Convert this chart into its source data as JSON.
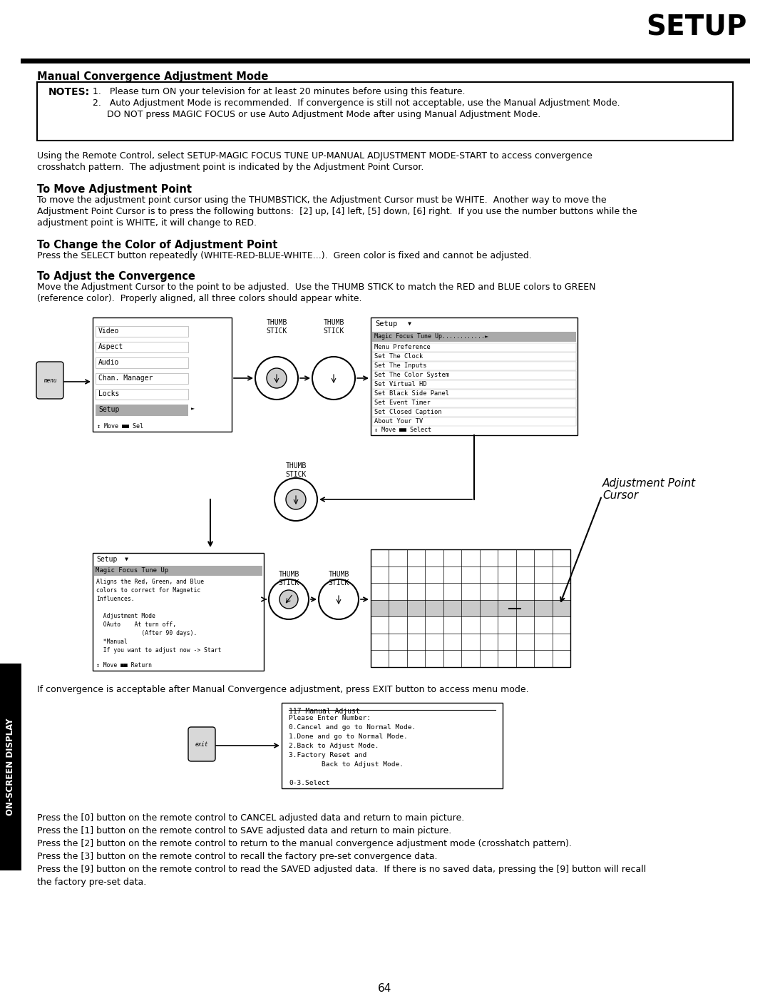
{
  "title": "SETUP",
  "page_number": "64",
  "section_title": "Manual Convergence Adjustment Mode",
  "notes_label": "NOTES:",
  "note1": "1.   Please turn ON your television for at least 20 minutes before using this feature.",
  "note2": "2.   Auto Adjustment Mode is recommended.  If convergence is still not acceptable, use the Manual Adjustment Mode.",
  "note3": "     DO NOT press MAGIC FOCUS or use Auto Adjustment Mode after using Manual Adjustment Mode.",
  "para1a": "Using the Remote Control, select SETUP-MAGIC FOCUS TUNE UP-MANUAL ADJUSTMENT MODE-START to access convergence",
  "para1b": "crosshatch pattern.  The adjustment point is indicated by the Adjustment Point Cursor.",
  "sub1_title": "To Move Adjustment Point",
  "sub1a": "To move the adjustment point cursor using the THUMBSTICK, the Adjustment Cursor must be WHITE.  Another way to move the",
  "sub1b": "Adjustment Point Cursor is to press the following buttons:  [2] up, [4] left, [5] down, [6] right.  If you use the number buttons while the",
  "sub1c": "adjustment point is WHITE, it will change to RED.",
  "sub2_title": "To Change the Color of Adjustment Point",
  "sub2a": "Press the SELECT button repeatedly (WHITE-RED-BLUE-WHITE...).  Green color is fixed and cannot be adjusted.",
  "sub3_title": "To Adjust the Convergence",
  "sub3a": "Move the Adjustment Cursor to the point to be adjusted.  Use the THUMB STICK to match the RED and BLUE colors to GREEN",
  "sub3b": "(reference color).  Properly aligned, all three colors should appear white.",
  "exit_text": "If convergence is acceptable after Manual Convergence adjustment, press EXIT button to access menu mode.",
  "footer1": "Press the [0] button on the remote control to CANCEL adjusted data and return to main picture.",
  "footer2": "Press the [1] button on the remote control to SAVE adjusted data and return to main picture.",
  "footer3": "Press the [2] button on the remote control to return to the manual convergence adjustment mode (crosshatch pattern).",
  "footer4": "Press the [3] button on the remote control to recall the factory pre-set convergence data.",
  "footer5": "Press the [9] button on the remote control to read the SAVED adjusted data.  If there is no saved data, pressing the [9] button will recall",
  "footer6": "the factory pre-set data.",
  "sidebar": "ON-SCREEN DISPLAY",
  "adj_label": "Adjustment Point\nCursor",
  "menu_items": [
    "Video",
    "Aspect",
    "Audio",
    "Chan. Manager",
    "Locks",
    "Setup"
  ],
  "setup_items": [
    "Menu Preference",
    "Set The Clock",
    "Set The Inputs",
    "Set The Color System",
    "Set Virtual HD",
    "Set Black Side Panel",
    "Set Event Timer",
    "Set Closed Caption",
    "About Your TV"
  ],
  "detail_lines": [
    "Aligns the Red, Green, and Blue",
    "colors to correct for Magnetic",
    "Influences.",
    "",
    "  Adjustment Mode",
    "  OAuto    At turn off,",
    "             (After 90 days).",
    "  *Manual",
    "  If you want to adjust now -> Start"
  ],
  "exit_menu": [
    "117 Manual Adjust",
    "Please Enter Number:",
    "0.Cancel and go to Normal Mode.",
    "1.Done and go to Normal Mode.",
    "2.Back to Adjust Mode.",
    "3.Factory Reset and",
    "        Back to Adjust Mode.",
    "",
    "0-3.Select"
  ]
}
